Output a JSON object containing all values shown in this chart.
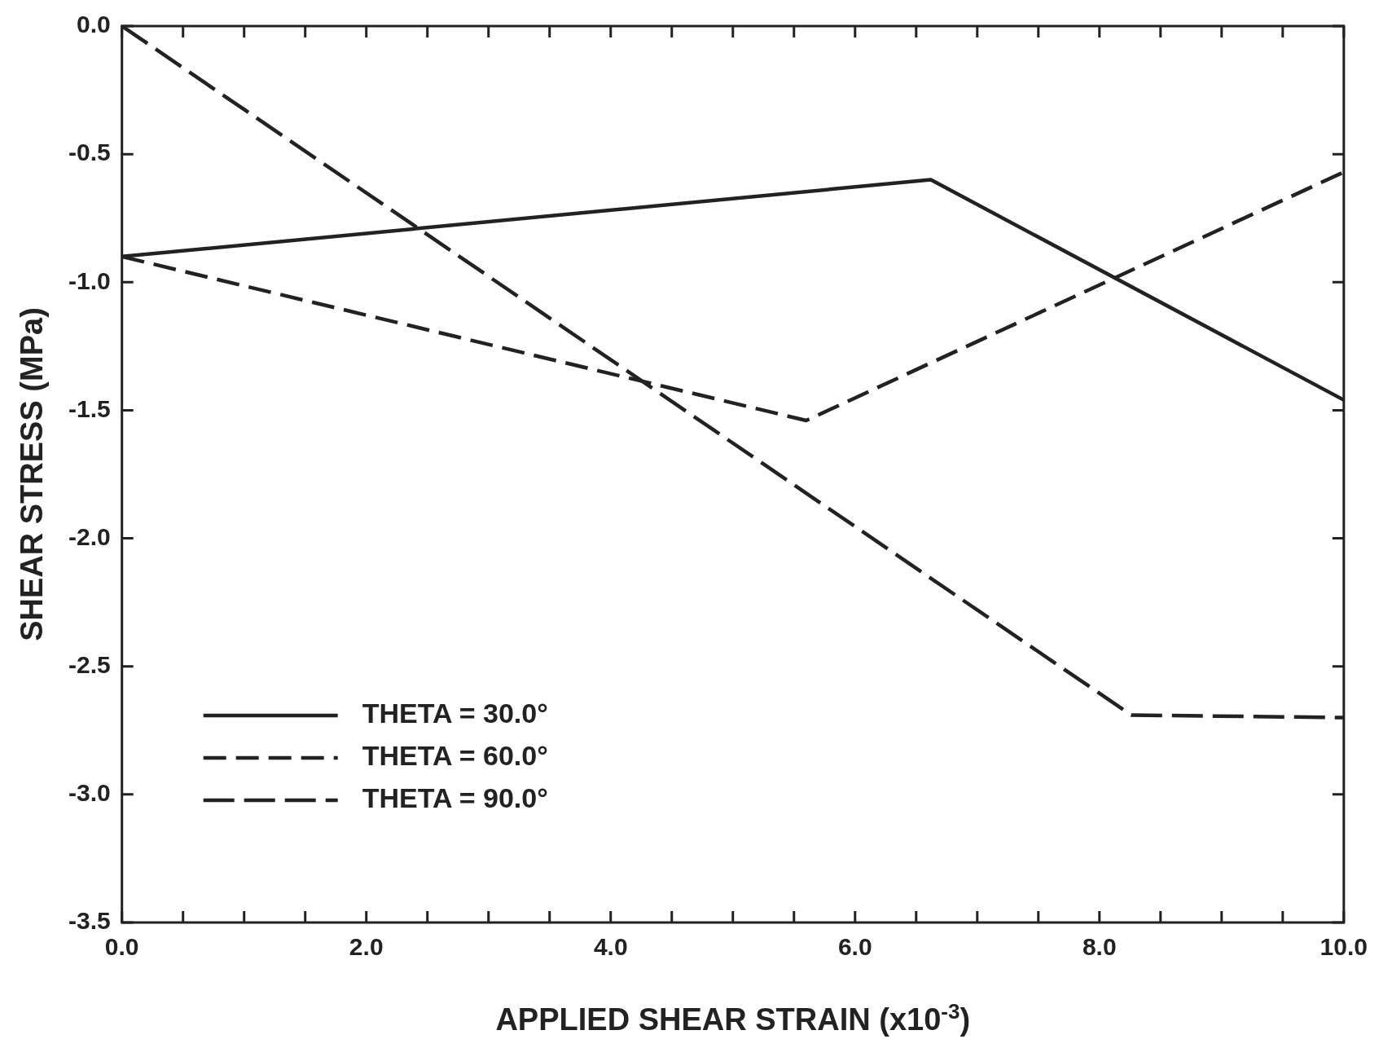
{
  "chart_data": {
    "type": "line",
    "xlabel": "APPLIED SHEAR STRAIN (x10$^{-3}$)",
    "ylabel": "SHEAR STRESS (MPa)",
    "xlim": [
      0,
      10
    ],
    "ylim": [
      -3.5,
      0
    ],
    "xticks": [
      {
        "value": 0,
        "label": "0.0"
      },
      {
        "value": 0.5,
        "label": null
      },
      {
        "value": 1,
        "label": null
      },
      {
        "value": 1.5,
        "label": null
      },
      {
        "value": 2,
        "label": "2.0"
      },
      {
        "value": 2.5,
        "label": null
      },
      {
        "value": 3,
        "label": null
      },
      {
        "value": 3.5,
        "label": null
      },
      {
        "value": 4,
        "label": "4.0"
      },
      {
        "value": 4.5,
        "label": null
      },
      {
        "value": 5,
        "label": null
      },
      {
        "value": 5.5,
        "label": null
      },
      {
        "value": 6,
        "label": "6.0"
      },
      {
        "value": 6.5,
        "label": null
      },
      {
        "value": 7,
        "label": null
      },
      {
        "value": 7.5,
        "label": null
      },
      {
        "value": 8,
        "label": "8.0"
      },
      {
        "value": 8.5,
        "label": null
      },
      {
        "value": 9,
        "label": null
      },
      {
        "value": 9.5,
        "label": null
      },
      {
        "value": 10,
        "label": "10.0"
      }
    ],
    "yticks": [
      {
        "value": -3.5,
        "label": "-3.5"
      },
      {
        "value": -3,
        "label": "-3.0"
      },
      {
        "value": -2.5,
        "label": "-2.5"
      },
      {
        "value": -2,
        "label": "-2.0"
      },
      {
        "value": -1.5,
        "label": "-1.5"
      },
      {
        "value": -1,
        "label": "-1.0"
      },
      {
        "value": -0.5,
        "label": "-0.5"
      },
      {
        "value": 0,
        "label": "0.0"
      }
    ],
    "legend": "bottom left",
    "marker": "none",
    "series": [
      {
        "name": "THETA = 30.0°",
        "color": "#222222",
        "line_style": "solid",
        "x": [
          0,
          6.62,
          10
        ],
        "values": [
          -0.9,
          -0.6,
          -1.46
        ]
      },
      {
        "name": "THETA = 60.0°",
        "color": "#222222",
        "line_style": "dashed",
        "x": [
          0,
          5.6,
          10
        ],
        "values": [
          -0.9,
          -1.54,
          -0.57
        ]
      },
      {
        "name": "THETA = 90.0°",
        "color": "#222222",
        "line_style": "dashed",
        "x": [
          0,
          8.26,
          10
        ],
        "values": [
          0,
          -2.69,
          -2.7
        ]
      }
    ]
  }
}
